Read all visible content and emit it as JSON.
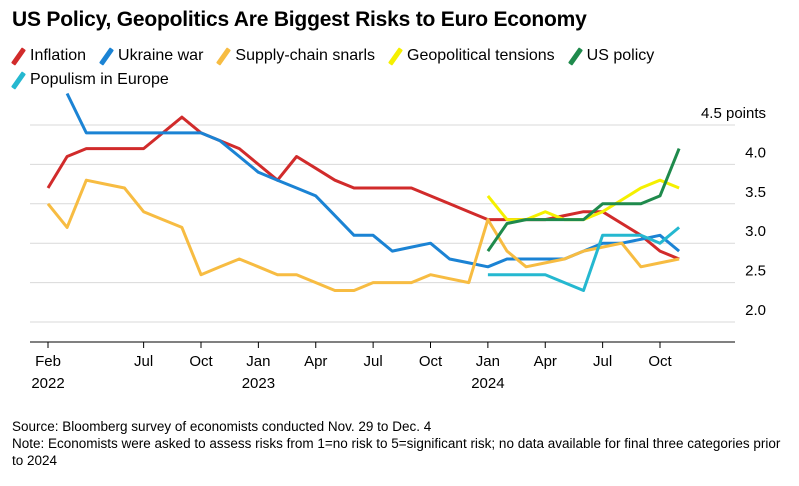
{
  "title": "US Policy, Geopolitics Are Biggest Risks to Euro Economy",
  "legend": [
    {
      "label": "Inflation",
      "color": "#d12b2b"
    },
    {
      "label": "Ukraine war",
      "color": "#1b83d4"
    },
    {
      "label": "Supply-chain snarls",
      "color": "#f7bc42"
    },
    {
      "label": "Geopolitical tensions",
      "color": "#f5f000"
    },
    {
      "label": "US policy",
      "color": "#1f8a4c"
    },
    {
      "label": "Populism in Europe",
      "color": "#25b8d0"
    }
  ],
  "footer": {
    "source": "Source: Bloomberg survey of economists conducted Nov. 29 to Dec. 4",
    "note": "Note: Economists were asked to assess risks from 1=no risk to 5=significant risk; no data available for final three categories prior to 2024"
  },
  "chart_data": {
    "type": "line",
    "title": "US Policy, Geopolitics Are Biggest Risks to Euro Economy",
    "xlabel": "",
    "ylabel": "points",
    "ylim": [
      2.0,
      4.5
    ],
    "yticks": [
      {
        "value": 4.5,
        "label": "4.5 points"
      },
      {
        "value": 4.0,
        "label": "4.0"
      },
      {
        "value": 3.5,
        "label": "3.5"
      },
      {
        "value": 3.0,
        "label": "3.0"
      },
      {
        "value": 2.5,
        "label": "2.5"
      },
      {
        "value": 2.0,
        "label": "2.0"
      }
    ],
    "x_unit": "months since Jan 2022",
    "xlim": [
      0.5,
      35.5
    ],
    "xticks": [
      {
        "value": 1,
        "label": "Feb",
        "year": "2022"
      },
      {
        "value": 6,
        "label": "Jul",
        "year": ""
      },
      {
        "value": 9,
        "label": "Oct",
        "year": ""
      },
      {
        "value": 12,
        "label": "Jan",
        "year": "2023"
      },
      {
        "value": 15,
        "label": "Apr",
        "year": ""
      },
      {
        "value": 18,
        "label": "Jul",
        "year": ""
      },
      {
        "value": 21,
        "label": "Oct",
        "year": ""
      },
      {
        "value": 24,
        "label": "Jan",
        "year": "2024"
      },
      {
        "value": 27,
        "label": "Apr",
        "year": ""
      },
      {
        "value": 30,
        "label": "Jul",
        "year": ""
      },
      {
        "value": 33,
        "label": "Oct",
        "year": ""
      }
    ],
    "series": [
      {
        "name": "Inflation",
        "color": "#d12b2b",
        "x": [
          1,
          2,
          3,
          4,
          5,
          6,
          7,
          8,
          9,
          10,
          11,
          12,
          13,
          14,
          15,
          16,
          17,
          18,
          19,
          20,
          21,
          22,
          23,
          24,
          25,
          26,
          27,
          28,
          29,
          30,
          31,
          32,
          33,
          34
        ],
        "y": [
          3.7,
          4.1,
          4.2,
          4.2,
          4.2,
          4.2,
          4.4,
          4.6,
          4.4,
          4.3,
          4.2,
          4.0,
          3.8,
          4.1,
          3.95,
          3.8,
          3.7,
          3.7,
          3.7,
          3.7,
          3.6,
          3.5,
          3.4,
          3.3,
          3.3,
          3.3,
          3.3,
          3.35,
          3.4,
          3.4,
          3.25,
          3.1,
          2.9,
          2.8
        ]
      },
      {
        "name": "Ukraine war",
        "color": "#1b83d4",
        "x": [
          2,
          3,
          4,
          5,
          6,
          7,
          8,
          9,
          10,
          11,
          12,
          13,
          14,
          15,
          16,
          17,
          18,
          19,
          20,
          21,
          22,
          23,
          24,
          25,
          26,
          27,
          28,
          29,
          30,
          31,
          32,
          33,
          34
        ],
        "y": [
          4.9,
          4.4,
          4.4,
          4.4,
          4.4,
          4.4,
          4.4,
          4.4,
          4.3,
          4.1,
          3.9,
          3.8,
          3.7,
          3.6,
          3.35,
          3.1,
          3.1,
          2.9,
          2.95,
          3.0,
          2.8,
          2.75,
          2.7,
          2.8,
          2.8,
          2.8,
          2.8,
          2.9,
          3.0,
          3.0,
          3.05,
          3.1,
          2.9
        ]
      },
      {
        "name": "Supply-chain snarls",
        "color": "#f7bc42",
        "x": [
          1,
          2,
          3,
          4,
          5,
          6,
          7,
          8,
          9,
          10,
          11,
          12,
          13,
          14,
          15,
          16,
          17,
          18,
          19,
          20,
          21,
          22,
          23,
          24,
          25,
          26,
          27,
          28,
          29,
          30,
          31,
          32,
          33,
          34
        ],
        "y": [
          3.5,
          3.2,
          3.8,
          3.75,
          3.7,
          3.4,
          3.3,
          3.2,
          2.6,
          2.7,
          2.8,
          2.7,
          2.6,
          2.6,
          2.5,
          2.4,
          2.4,
          2.5,
          2.5,
          2.5,
          2.6,
          2.55,
          2.5,
          3.3,
          2.9,
          2.7,
          2.75,
          2.8,
          2.9,
          2.95,
          3.0,
          2.7,
          2.75,
          2.8
        ]
      },
      {
        "name": "Geopolitical tensions",
        "color": "#f5f000",
        "x": [
          24,
          25,
          26,
          27,
          28,
          29,
          30,
          31,
          32,
          33,
          34
        ],
        "y": [
          3.6,
          3.3,
          3.3,
          3.4,
          3.3,
          3.3,
          3.4,
          3.55,
          3.7,
          3.8,
          3.7
        ]
      },
      {
        "name": "US policy",
        "color": "#1f8a4c",
        "x": [
          24,
          25,
          26,
          27,
          28,
          29,
          30,
          31,
          32,
          33,
          34
        ],
        "y": [
          2.9,
          3.25,
          3.3,
          3.3,
          3.3,
          3.3,
          3.5,
          3.5,
          3.5,
          3.6,
          4.2
        ]
      },
      {
        "name": "Populism in Europe",
        "color": "#25b8d0",
        "x": [
          24,
          25,
          26,
          27,
          28,
          29,
          30,
          31,
          32,
          33,
          34
        ],
        "y": [
          2.6,
          2.6,
          2.6,
          2.6,
          2.5,
          2.4,
          3.1,
          3.1,
          3.1,
          3.0,
          3.2
        ]
      }
    ]
  }
}
